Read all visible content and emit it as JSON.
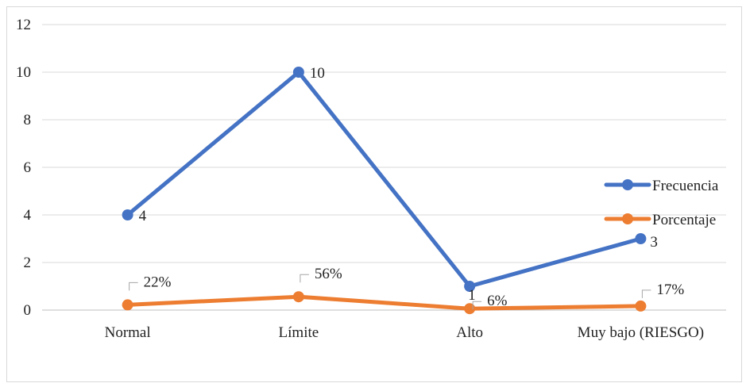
{
  "chart_data": {
    "type": "line",
    "categories": [
      "Normal",
      "Límite",
      "Alto",
      "Muy bajo (RIESGO)"
    ],
    "y_ticks": [
      "0",
      "2",
      "4",
      "6",
      "8",
      "10",
      "12"
    ],
    "ylim": [
      0,
      12
    ],
    "grid": true,
    "legend_position": "right",
    "series": [
      {
        "name": "Frecuencia",
        "color": "#4472C4",
        "values": [
          4,
          10,
          1,
          3
        ],
        "labels": [
          "4",
          "10",
          "1",
          "3"
        ]
      },
      {
        "name": "Porcentaje",
        "color": "#ED7D31",
        "values": [
          0.22,
          0.56,
          0.06,
          0.17
        ],
        "labels": [
          "22%",
          "56%",
          "6%",
          "17%"
        ]
      }
    ]
  }
}
